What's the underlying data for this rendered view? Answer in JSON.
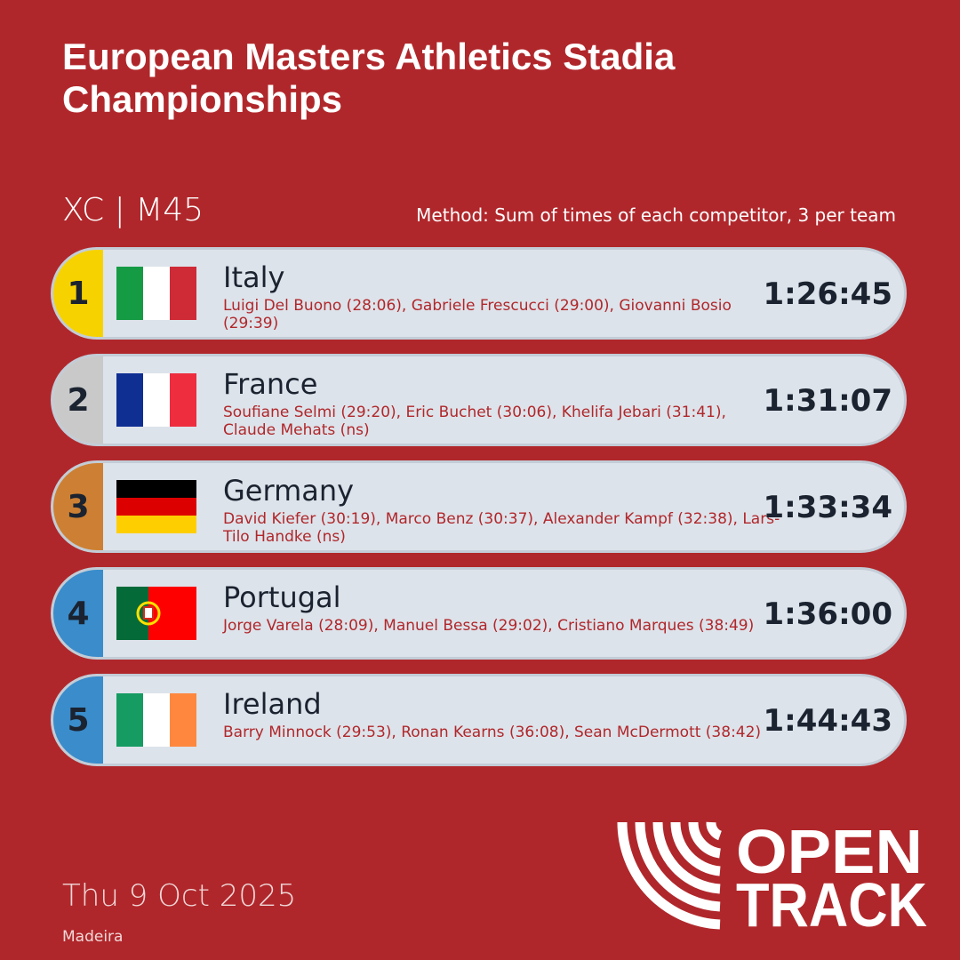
{
  "header": {
    "title": "European Masters Athletics Stadia Championships",
    "event": "XC | M45",
    "method": "Method: Sum of times of each competitor, 3 per team"
  },
  "results": [
    {
      "rank": 1,
      "country": "Italy",
      "athletes": "Luigi Del Buono (28:06), Gabriele Frescucci (29:00), Giovanni Bosio (29:39)",
      "time": "1:26:45"
    },
    {
      "rank": 2,
      "country": "France",
      "athletes": "Soufiane Selmi (29:20), Eric Buchet (30:06), Khelifa Jebari (31:41), Claude Mehats (ns)",
      "time": "1:31:07"
    },
    {
      "rank": 3,
      "country": "Germany",
      "athletes": "David Kiefer (30:19), Marco Benz (30:37), Alexander Kampf (32:38), Lars-Tilo Handke (ns)",
      "time": "1:33:34"
    },
    {
      "rank": 4,
      "country": "Portugal",
      "athletes": "Jorge Varela (28:09), Manuel Bessa (29:02), Cristiano Marques (38:49)",
      "time": "1:36:00"
    },
    {
      "rank": 5,
      "country": "Ireland",
      "athletes": "Barry Minnock (29:53), Ronan Kearns (36:08), Sean McDermott (38:42)",
      "time": "1:44:43"
    }
  ],
  "footer": {
    "date": "Thu 9 Oct 2025",
    "location": "Madeira",
    "logo_line1": "OPEN",
    "logo_line2": "TRACK"
  }
}
